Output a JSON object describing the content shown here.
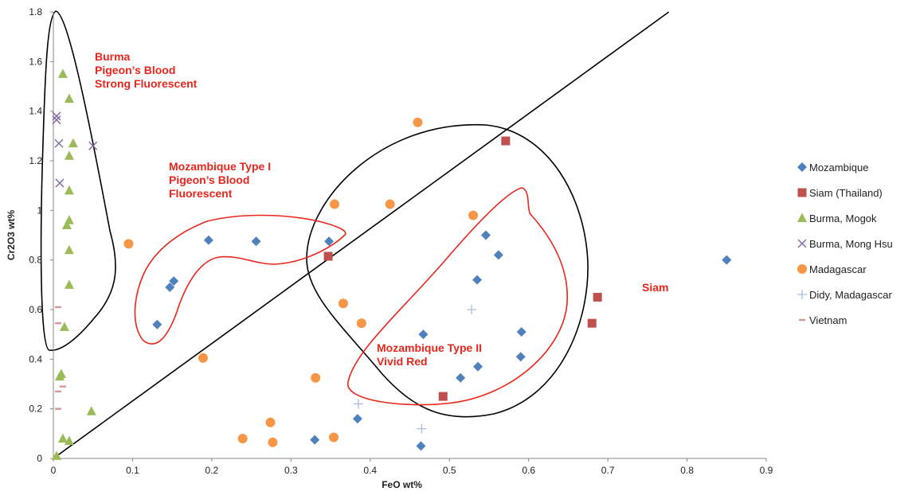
{
  "chart_data": {
    "type": "scatter",
    "title": "",
    "xlabel": "FeO wt%",
    "ylabel": "Cr2O3 wt%",
    "xlim": [
      0,
      0.9
    ],
    "ylim": [
      0,
      1.8
    ],
    "x_ticks": [
      "0",
      "0.1",
      "0.2",
      "0.3",
      "0.4",
      "0.5",
      "0.6",
      "0.7",
      "0.8",
      "0.9"
    ],
    "y_ticks": [
      "0",
      "0.2",
      "0.4",
      "0.6",
      "0.8",
      "1",
      "1.2",
      "1.4",
      "1.6",
      "1.8"
    ],
    "grid": false,
    "legend_position": "right",
    "series": [
      {
        "name": "Mozambique",
        "marker": "diamond",
        "color": "#4f81bd",
        "points": [
          [
            0.131,
            0.54
          ],
          [
            0.147,
            0.69
          ],
          [
            0.152,
            0.715
          ],
          [
            0.196,
            0.88
          ],
          [
            0.256,
            0.875
          ],
          [
            0.348,
            0.875
          ],
          [
            0.546,
            0.9
          ],
          [
            0.562,
            0.82
          ],
          [
            0.535,
            0.72
          ],
          [
            0.591,
            0.51
          ],
          [
            0.467,
            0.5
          ],
          [
            0.59,
            0.41
          ],
          [
            0.536,
            0.37
          ],
          [
            0.514,
            0.325
          ],
          [
            0.384,
            0.16
          ],
          [
            0.33,
            0.075
          ],
          [
            0.464,
            0.05
          ],
          [
            0.85,
            0.8
          ]
        ]
      },
      {
        "name": "Siam (Thailand)",
        "marker": "square",
        "color": "#c0504d",
        "points": [
          [
            0.571,
            1.28
          ],
          [
            0.347,
            0.815
          ],
          [
            0.687,
            0.65
          ],
          [
            0.68,
            0.545
          ],
          [
            0.492,
            0.25
          ]
        ]
      },
      {
        "name": "Burma, Mogok",
        "marker": "triangle",
        "color": "#9bbb59",
        "points": [
          [
            0.012,
            1.55
          ],
          [
            0.02,
            1.45
          ],
          [
            0.025,
            1.27
          ],
          [
            0.02,
            1.22
          ],
          [
            0.02,
            1.08
          ],
          [
            0.02,
            0.96
          ],
          [
            0.017,
            0.94
          ],
          [
            0.02,
            0.84
          ],
          [
            0.02,
            0.7
          ],
          [
            0.014,
            0.53
          ],
          [
            0.01,
            0.34
          ],
          [
            0.008,
            0.33
          ],
          [
            0.048,
            0.19
          ],
          [
            0.012,
            0.08
          ],
          [
            0.02,
            0.07
          ],
          [
            0.004,
            0.01
          ]
        ]
      },
      {
        "name": "Burma, Mong Hsu",
        "marker": "x",
        "color": "#8064a2",
        "points": [
          [
            0.004,
            1.38
          ],
          [
            0.004,
            1.365
          ],
          [
            0.007,
            1.27
          ],
          [
            0.05,
            1.26
          ],
          [
            0.008,
            1.11
          ]
        ]
      },
      {
        "name": "Madagascar",
        "marker": "circle",
        "color": "#f79646",
        "points": [
          [
            0.095,
            0.865
          ],
          [
            0.355,
            1.025
          ],
          [
            0.425,
            1.025
          ],
          [
            0.46,
            1.355
          ],
          [
            0.53,
            0.98
          ],
          [
            0.366,
            0.625
          ],
          [
            0.389,
            0.545
          ],
          [
            0.189,
            0.405
          ],
          [
            0.331,
            0.325
          ],
          [
            0.274,
            0.145
          ],
          [
            0.239,
            0.08
          ],
          [
            0.277,
            0.065
          ],
          [
            0.354,
            0.085
          ]
        ]
      },
      {
        "name": "Didy, Madagascar",
        "marker": "plus",
        "color": "#a6bfdd",
        "points": [
          [
            0.528,
            0.6
          ],
          [
            0.385,
            0.22
          ],
          [
            0.465,
            0.12
          ]
        ]
      },
      {
        "name": "Vietnam",
        "marker": "dash",
        "color": "#d99694",
        "points": [
          [
            0.006,
            0.61
          ],
          [
            0.006,
            0.545
          ],
          [
            0.012,
            0.29
          ],
          [
            0.006,
            0.27
          ],
          [
            0.006,
            0.2
          ]
        ]
      }
    ],
    "reference_line": {
      "from": [
        0,
        0
      ],
      "to": [
        0.777,
        1.8
      ],
      "color": "#000000"
    },
    "annotations": [
      {
        "lines": [
          "Burma",
          "Pigeon’s Blood",
          "Strong Fluorescent"
        ],
        "color": "#e8261c"
      },
      {
        "lines": [
          "Mozambique Type I",
          "Pigeon’s Blood",
          "Fluorescent"
        ],
        "color": "#e8261c"
      },
      {
        "lines": [
          "Mozambique Type II",
          "Vivid Red"
        ],
        "color": "#e8261c"
      },
      {
        "lines": [
          "Siam"
        ],
        "color": "#e8261c"
      }
    ]
  }
}
